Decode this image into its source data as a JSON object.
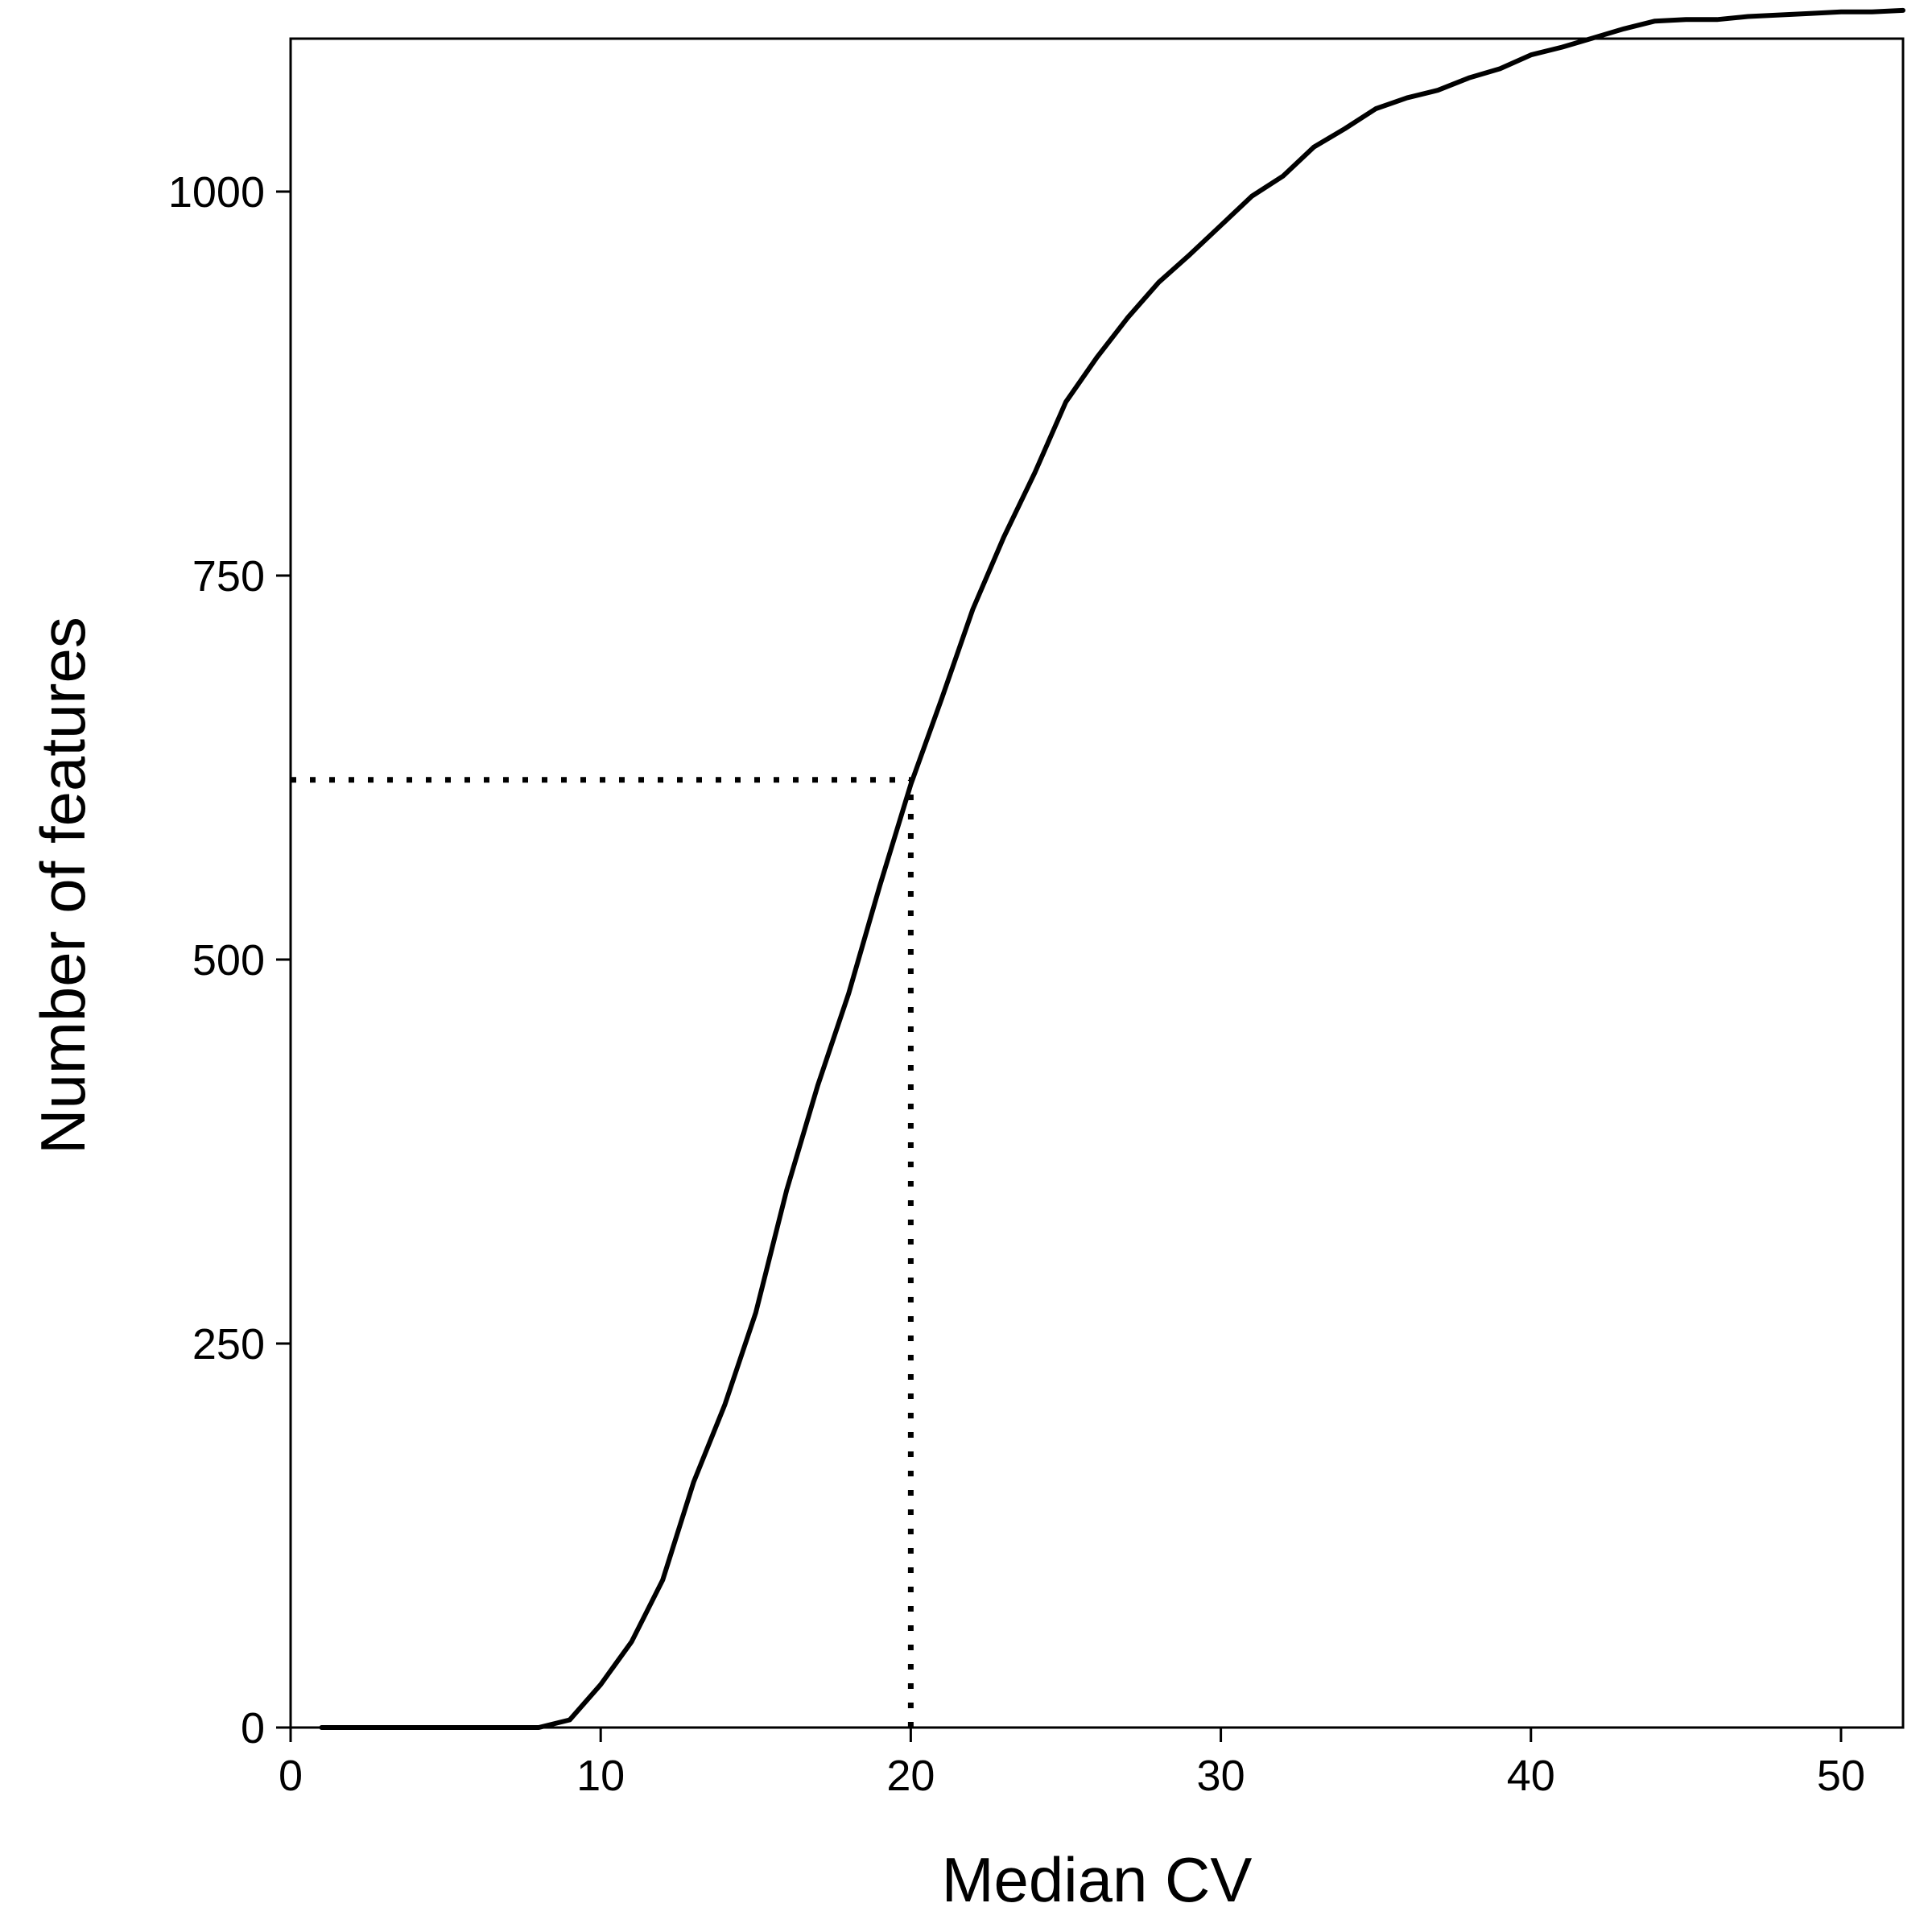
{
  "chart_data": {
    "type": "line",
    "xlabel": "Median CV",
    "ylabel": "Number of features",
    "xlim": [
      0,
      52
    ],
    "ylim": [
      0,
      1100
    ],
    "x_ticks": [
      "0",
      "10",
      "20",
      "30",
      "40",
      "50"
    ],
    "y_ticks": [
      "0",
      "250",
      "500",
      "750",
      "1000"
    ],
    "grid": false,
    "series": [
      {
        "color": "#000000",
        "style": "solid",
        "x": [
          1,
          2,
          3,
          4,
          5,
          6,
          7,
          8,
          9,
          10,
          11,
          12,
          13,
          14,
          15,
          16,
          17,
          18,
          19,
          20,
          21,
          22,
          23,
          24,
          25,
          26,
          27,
          28,
          29,
          30,
          31,
          32,
          33,
          34,
          35,
          36,
          37,
          38,
          39,
          40,
          41,
          42,
          43,
          44,
          45,
          46,
          47,
          48,
          49,
          50,
          51,
          52
        ],
        "y": [
          0,
          0,
          0,
          0,
          0,
          0,
          0,
          0,
          5,
          28,
          56,
          96,
          160,
          210,
          270,
          350,
          418,
          478,
          548,
          614,
          670,
          728,
          775,
          817,
          863,
          892,
          918,
          941,
          959,
          978,
          997,
          1010,
          1029,
          1041,
          1054,
          1061,
          1066,
          1074,
          1080,
          1089,
          1094,
          1100,
          1106,
          1111,
          1112,
          1112,
          1114,
          1115,
          1116,
          1117,
          1117,
          1118
        ]
      }
    ],
    "reference_lines": [
      {
        "type": "horizontal",
        "y": 617,
        "x_from": 0,
        "x_to": 20,
        "style": "dotted",
        "color": "#000000"
      },
      {
        "type": "vertical",
        "x": 20,
        "y_from": 0,
        "y_to": 617,
        "style": "dotted",
        "color": "#000000"
      }
    ]
  }
}
